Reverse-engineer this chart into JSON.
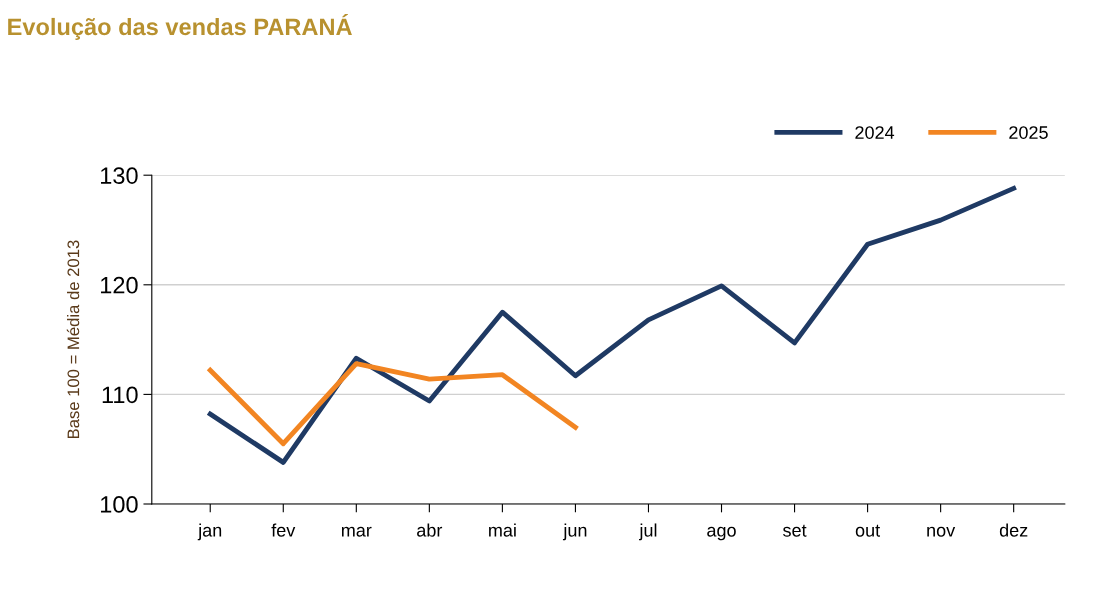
{
  "chart_data": {
    "type": "line",
    "title": "Evolução das vendas PARANÁ",
    "ylabel": "Base 100 = Média de 2013",
    "categories": [
      "jan",
      "fev",
      "mar",
      "abr",
      "mai",
      "jun",
      "jul",
      "ago",
      "set",
      "out",
      "nov",
      "dez"
    ],
    "series": [
      {
        "name": "2024",
        "color": "#1f3a64",
        "values": [
          108.2,
          103.8,
          113.3,
          109.4,
          117.5,
          111.7,
          116.8,
          119.9,
          114.7,
          123.7,
          125.9,
          128.8
        ]
      },
      {
        "name": "2025",
        "color": "#f28522",
        "values": [
          112.2,
          105.5,
          112.8,
          111.4,
          111.8,
          107.0,
          null,
          null,
          null,
          null,
          null,
          null
        ]
      }
    ],
    "ylim": [
      100,
      130
    ],
    "yticks": [
      100,
      110,
      120,
      130
    ],
    "grid": "y",
    "legend": "top right",
    "marker": "none",
    "line_style": "solid"
  }
}
